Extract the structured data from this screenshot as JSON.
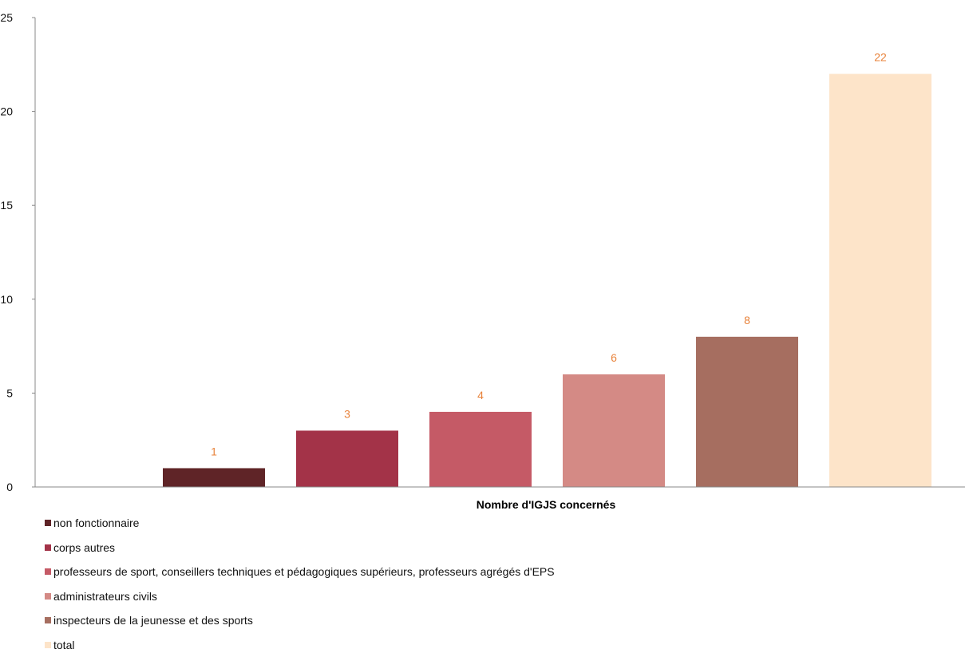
{
  "chart_data": {
    "type": "bar",
    "title": "",
    "xlabel": "Nombre d'IGJS concernés",
    "ylabel": "",
    "ylim": [
      0,
      25
    ],
    "yticks": [
      "0",
      "5",
      "10",
      "15",
      "20",
      "25"
    ],
    "grid": false,
    "legend_position": "bottom-left",
    "series": [
      {
        "name": "non fonctionnaire",
        "value": 1,
        "label": "1",
        "color": "#5f2427"
      },
      {
        "name": "corps autres",
        "value": 3,
        "label": "3",
        "color": "#a33348"
      },
      {
        "name": "professeurs de sport, conseillers techniques et pédagogiques supérieurs, professeurs agrégés d'EPS",
        "value": 4,
        "label": "4",
        "color": "#c55a66"
      },
      {
        "name": "administrateurs civils",
        "value": 6,
        "label": "6",
        "color": "#d48a85"
      },
      {
        "name": "inspecteurs de la jeunesse et des sports",
        "value": 8,
        "label": "8",
        "color": "#a66e60"
      },
      {
        "name": "total",
        "value": 22,
        "label": "22",
        "color": "#fde4c9"
      }
    ],
    "data_label_color": "#e8823a"
  }
}
